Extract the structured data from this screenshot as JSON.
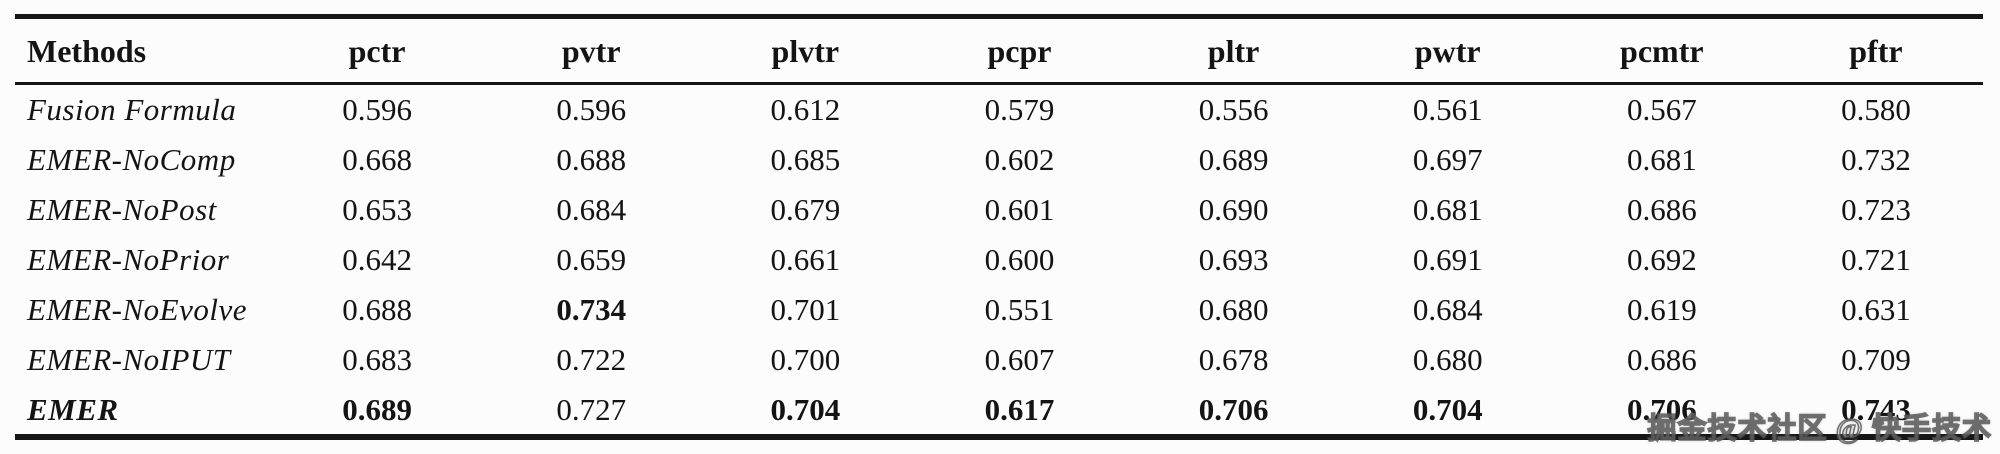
{
  "colors": {
    "background": "#fcfcfc",
    "text": "#141414",
    "rule": "#161616",
    "watermark_stroke": "#4b4b4b"
  },
  "table": {
    "columns": [
      "Methods",
      "pctr",
      "pvtr",
      "plvtr",
      "pcpr",
      "pltr",
      "pwtr",
      "pcmtr",
      "pftr"
    ],
    "rows": [
      {
        "method": "Fusion Formula",
        "method_bold": false,
        "values": [
          "0.596",
          "0.596",
          "0.612",
          "0.579",
          "0.556",
          "0.561",
          "0.567",
          "0.580"
        ],
        "bold": [
          false,
          false,
          false,
          false,
          false,
          false,
          false,
          false
        ]
      },
      {
        "method": "EMER-NoComp",
        "method_bold": false,
        "values": [
          "0.668",
          "0.688",
          "0.685",
          "0.602",
          "0.689",
          "0.697",
          "0.681",
          "0.732"
        ],
        "bold": [
          false,
          false,
          false,
          false,
          false,
          false,
          false,
          false
        ]
      },
      {
        "method": "EMER-NoPost",
        "method_bold": false,
        "values": [
          "0.653",
          "0.684",
          "0.679",
          "0.601",
          "0.690",
          "0.681",
          "0.686",
          "0.723"
        ],
        "bold": [
          false,
          false,
          false,
          false,
          false,
          false,
          false,
          false
        ]
      },
      {
        "method": "EMER-NoPrior",
        "method_bold": false,
        "values": [
          "0.642",
          "0.659",
          "0.661",
          "0.600",
          "0.693",
          "0.691",
          "0.692",
          "0.721"
        ],
        "bold": [
          false,
          false,
          false,
          false,
          false,
          false,
          false,
          false
        ]
      },
      {
        "method": "EMER-NoEvolve",
        "method_bold": false,
        "values": [
          "0.688",
          "0.734",
          "0.701",
          "0.551",
          "0.680",
          "0.684",
          "0.619",
          "0.631"
        ],
        "bold": [
          false,
          true,
          false,
          false,
          false,
          false,
          false,
          false
        ]
      },
      {
        "method": "EMER-NoIPUT",
        "method_bold": false,
        "values": [
          "0.683",
          "0.722",
          "0.700",
          "0.607",
          "0.678",
          "0.680",
          "0.686",
          "0.709"
        ],
        "bold": [
          false,
          false,
          false,
          false,
          false,
          false,
          false,
          false
        ]
      },
      {
        "method": "EMER",
        "method_bold": true,
        "values": [
          "0.689",
          "0.727",
          "0.704",
          "0.617",
          "0.706",
          "0.704",
          "0.706",
          "0.743"
        ],
        "bold": [
          true,
          false,
          true,
          true,
          true,
          true,
          true,
          true
        ]
      }
    ]
  },
  "watermark": {
    "text": "掘金技术社区 @ 快手技术"
  }
}
